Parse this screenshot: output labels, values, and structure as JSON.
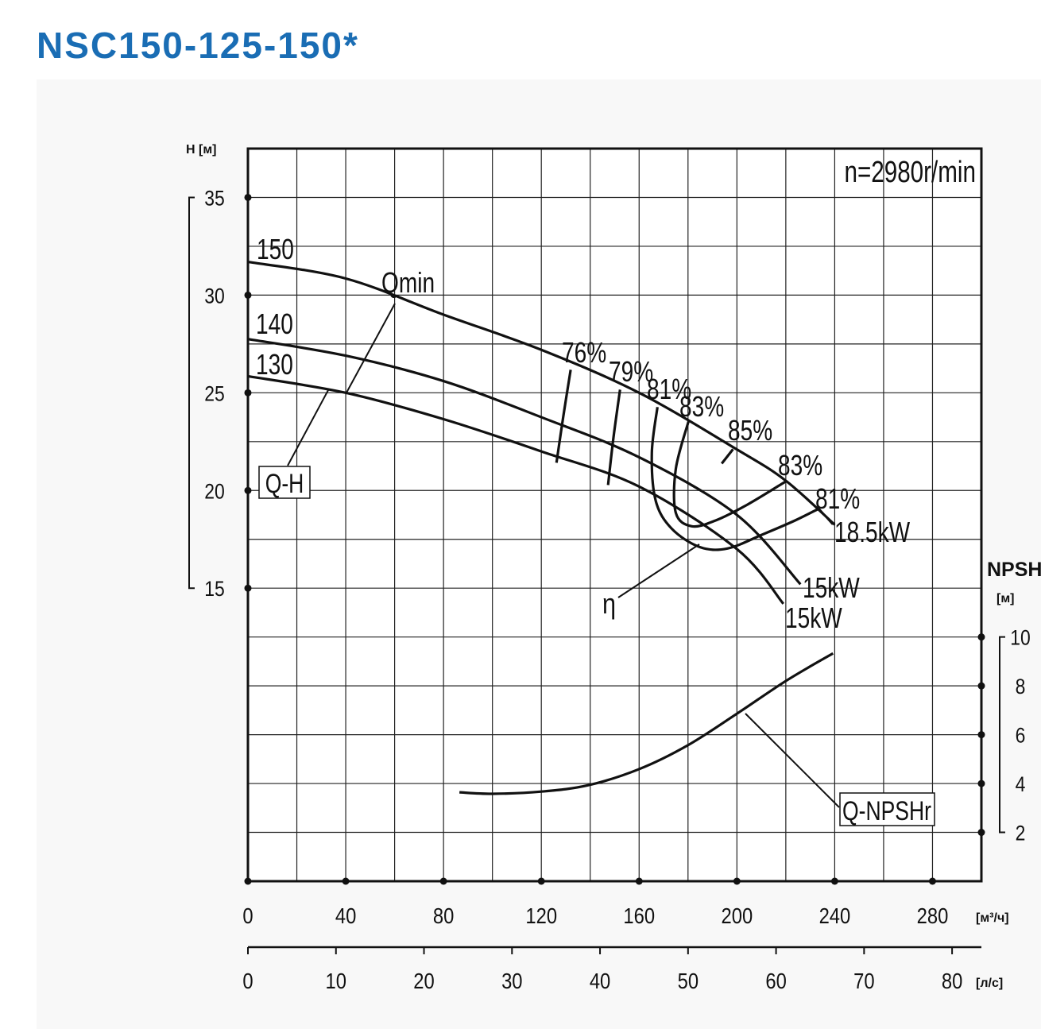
{
  "chart_data": {
    "type": "line",
    "title": "NSC150-125-150*",
    "subtitle": "n=2980r/min",
    "ylabel": "H [м]",
    "y2label": "NPSH",
    "y2unit": "[м]",
    "xlabel": "[м³/ч]",
    "x2label": "[л/с]",
    "xlim": [
      0,
      300
    ],
    "xticks": [
      0,
      40,
      80,
      120,
      160,
      200,
      240,
      280
    ],
    "x2lim": [
      0,
      83.33
    ],
    "x2ticks": [
      0,
      10,
      20,
      30,
      40,
      50,
      60,
      70,
      80
    ],
    "ylim": [
      0,
      37.5
    ],
    "yticks": [
      15,
      20,
      25,
      30,
      35
    ],
    "y2lim": [
      0,
      30
    ],
    "y2ticks": [
      2,
      4,
      6,
      8,
      10
    ],
    "grid": {
      "x": 20,
      "y": 2.5
    },
    "color": "#111111",
    "annotations": [
      "Qmin",
      "Q-H",
      "η"
    ],
    "series": [
      {
        "name": "150",
        "power": "18.5kW",
        "x": [
          0,
          40,
          80,
          120,
          160,
          200,
          220,
          240
        ],
        "values": [
          31.7,
          30.85,
          29.0,
          27.2,
          25.0,
          22.1,
          20.5,
          18.25
        ]
      },
      {
        "name": "140",
        "power": "15kW",
        "x": [
          0,
          40,
          80,
          120,
          160,
          200,
          226
        ],
        "values": [
          27.75,
          26.9,
          25.6,
          23.75,
          21.7,
          18.75,
          15.2
        ]
      },
      {
        "name": "130",
        "power": "15kW",
        "x": [
          0,
          40,
          80,
          120,
          160,
          200,
          219
        ],
        "values": [
          25.85,
          25.0,
          23.65,
          22.0,
          20.2,
          17.0,
          14.2
        ]
      },
      {
        "name": "Q-NPSHr",
        "axis": "y2",
        "x": [
          86.5,
          100.2,
          120,
          139.2,
          160,
          179.8,
          200,
          220.5,
          239.3
        ],
        "values": [
          3.64,
          3.58,
          3.67,
          3.93,
          4.59,
          5.56,
          6.86,
          8.23,
          9.33
        ]
      },
      {
        "name": "76%",
        "x": [
          132,
          129,
          126.2
        ],
        "values": [
          26.18,
          23.8,
          21.42
        ]
      },
      {
        "name": "79%",
        "x": [
          152.2,
          149.5,
          147.3
        ],
        "values": [
          25.16,
          22.7,
          20.28
        ]
      },
      {
        "name": "81%",
        "x": [
          167.5,
          165.2,
          166.8,
          173.3,
          184.7,
          196.1,
          210.7,
          223.7,
          233.5
        ],
        "values": [
          24.27,
          21.91,
          19.47,
          18.05,
          17.11,
          17.03,
          17.76,
          18.46,
          19.07
        ]
      },
      {
        "name": "83%",
        "x": [
          180.2,
          175.0,
          175.0,
          181.5,
          191.2,
          204.2,
          219.8
        ],
        "values": [
          23.54,
          21.1,
          18.86,
          18.17,
          18.46,
          19.27,
          20.45
        ]
      },
      {
        "name": "85%",
        "x": [
          193.8,
          198.4
        ],
        "values": [
          21.38,
          22.11
        ]
      }
    ]
  }
}
